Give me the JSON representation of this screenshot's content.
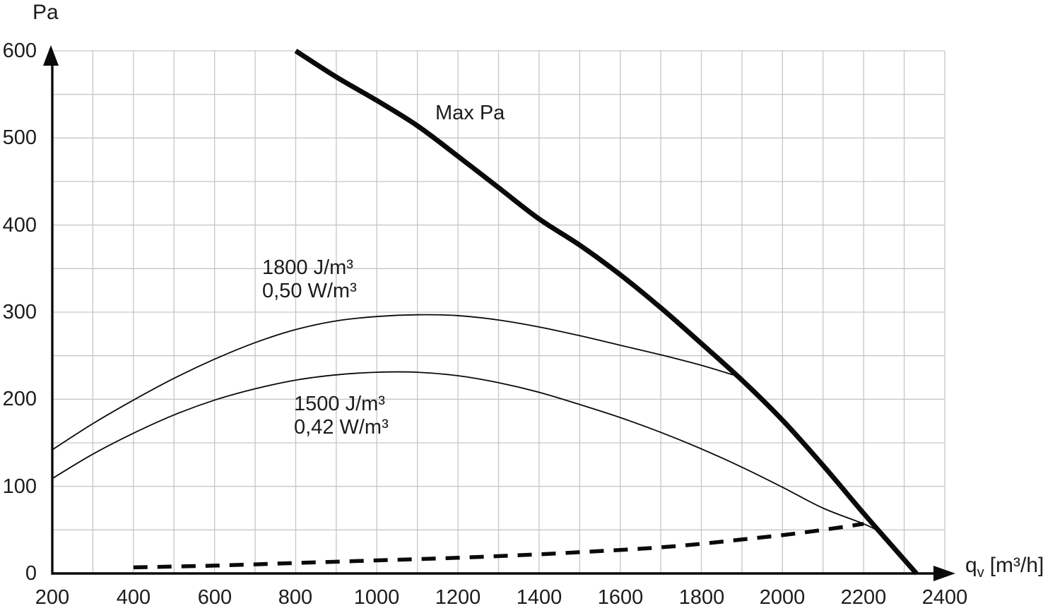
{
  "chart_data": {
    "type": "line",
    "title": "",
    "ylabel": "Pa",
    "xlabel": {
      "symbol": "q",
      "subscript": "v",
      "unit": "[m³/h]"
    },
    "xlim": [
      200,
      2400
    ],
    "ylim": [
      0,
      600
    ],
    "x_ticks": [
      200,
      400,
      600,
      800,
      1000,
      1200,
      1400,
      1600,
      1800,
      2000,
      2200,
      2400
    ],
    "y_ticks": [
      0,
      100,
      200,
      300,
      400,
      500,
      600
    ],
    "grid": {
      "show": true,
      "x_step": 100,
      "y_step": 50
    },
    "legend_position": "inline-labels",
    "colors": {
      "curve": "#0a0a0a",
      "grid": "#c6c6c6",
      "axis": "#0a0a0a",
      "text": "#1c1c1c"
    },
    "series": [
      {
        "id": "max-pa-curve",
        "label": "Max Pa",
        "style": "thick-solid",
        "points": [
          [
            800,
            600
          ],
          [
            900,
            570
          ],
          [
            1000,
            543
          ],
          [
            1100,
            514
          ],
          [
            1200,
            479
          ],
          [
            1300,
            443
          ],
          [
            1400,
            407
          ],
          [
            1500,
            377
          ],
          [
            1600,
            343
          ],
          [
            1700,
            305
          ],
          [
            1800,
            264
          ],
          [
            1900,
            222
          ],
          [
            2000,
            176
          ],
          [
            2100,
            124
          ],
          [
            2200,
            69
          ],
          [
            2260,
            37
          ],
          [
            2330,
            0
          ]
        ]
      },
      {
        "id": "curve-1800",
        "label_lines": [
          "1800 J/m³",
          "0,50 W/m³"
        ],
        "style": "thin-solid",
        "points": [
          [
            200,
            142
          ],
          [
            300,
            172
          ],
          [
            400,
            199
          ],
          [
            500,
            224
          ],
          [
            600,
            246
          ],
          [
            700,
            265
          ],
          [
            800,
            280
          ],
          [
            900,
            290
          ],
          [
            1000,
            295
          ],
          [
            1100,
            297
          ],
          [
            1200,
            296
          ],
          [
            1300,
            291
          ],
          [
            1400,
            283
          ],
          [
            1500,
            273
          ],
          [
            1600,
            262
          ],
          [
            1700,
            251
          ],
          [
            1800,
            239
          ],
          [
            1878,
            228
          ]
        ]
      },
      {
        "id": "curve-1500",
        "label_lines": [
          "1500 J/m³",
          "0,42 W/m³"
        ],
        "style": "thin-solid",
        "points": [
          [
            200,
            109
          ],
          [
            300,
            137
          ],
          [
            400,
            161
          ],
          [
            500,
            182
          ],
          [
            600,
            199
          ],
          [
            700,
            212
          ],
          [
            800,
            222
          ],
          [
            900,
            228
          ],
          [
            1000,
            231
          ],
          [
            1100,
            231
          ],
          [
            1200,
            227
          ],
          [
            1300,
            219
          ],
          [
            1400,
            208
          ],
          [
            1500,
            194
          ],
          [
            1600,
            179
          ],
          [
            1700,
            162
          ],
          [
            1800,
            143
          ],
          [
            1900,
            122
          ],
          [
            2000,
            99
          ],
          [
            2100,
            75
          ],
          [
            2200,
            57
          ],
          [
            2240,
            48
          ]
        ]
      },
      {
        "id": "min-curve-dashed",
        "style": "thick-dashed",
        "points": [
          [
            400,
            7
          ],
          [
            600,
            9
          ],
          [
            800,
            12
          ],
          [
            1000,
            15
          ],
          [
            1200,
            18
          ],
          [
            1400,
            22
          ],
          [
            1600,
            27
          ],
          [
            1700,
            30
          ],
          [
            1800,
            34
          ],
          [
            1900,
            39
          ],
          [
            2000,
            44
          ],
          [
            2100,
            50
          ],
          [
            2200,
            57
          ]
        ]
      }
    ]
  }
}
